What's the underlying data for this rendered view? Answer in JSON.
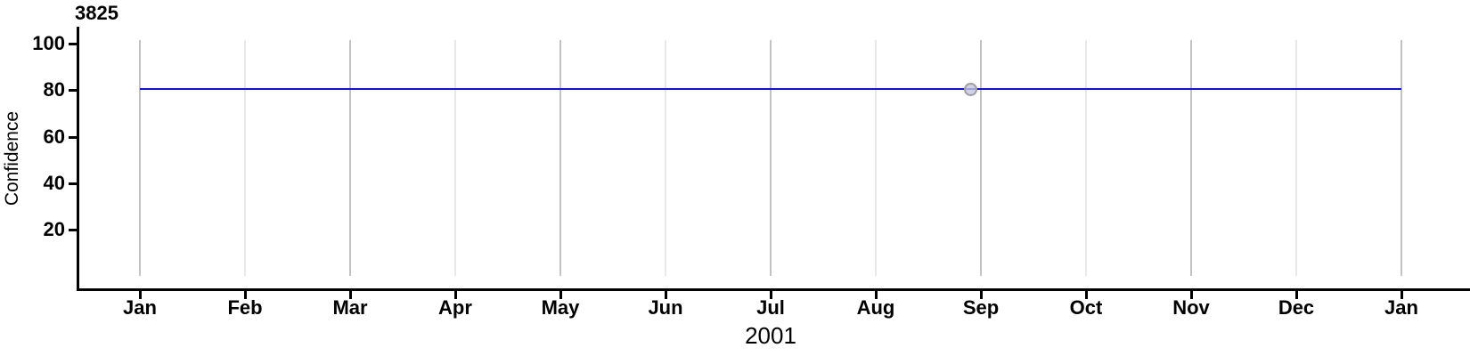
{
  "chart_data": {
    "type": "line",
    "title": "3825",
    "xlabel": "2001",
    "ylabel": "Confidence",
    "x_tick_labels": [
      "Jan",
      "Feb",
      "Mar",
      "Apr",
      "May",
      "Jun",
      "Jul",
      "Aug",
      "Sep",
      "Oct",
      "Nov",
      "Dec",
      "Jan"
    ],
    "y_tick_labels": [
      "100",
      "80",
      "60",
      "40",
      "20"
    ],
    "y_ticks": [
      100,
      80,
      60,
      40,
      20
    ],
    "ylim": [
      0,
      106
    ],
    "x_range": [
      "2001-01-01",
      "2002-01-01"
    ],
    "grid": "vertical gridlines at every month; alternate months (Jan, Mar, May, Jul, Sep, Nov, Jan) drawn darker",
    "legend_position": "none",
    "series": [
      {
        "name": "Confidence",
        "style": "solid horizontal line",
        "color": "#1414cc",
        "x": [
          "2001-01-01",
          "2002-01-01"
        ],
        "y": [
          80,
          80
        ]
      }
    ],
    "points": [
      {
        "x": "2001-08-29",
        "y": 80,
        "shape": "circle",
        "fill": "#c3c6dd",
        "edge": "#9e9e9e"
      }
    ]
  },
  "colors": {
    "background": "#ffffff",
    "axis": "#000000",
    "text": "#000000",
    "line": "#1414cc",
    "marker_fill": "#c3c6dd",
    "marker_edge": "#9e9e9e",
    "gridline_major": "#c3c3c3",
    "gridline_minor": "#e8e8e8"
  }
}
